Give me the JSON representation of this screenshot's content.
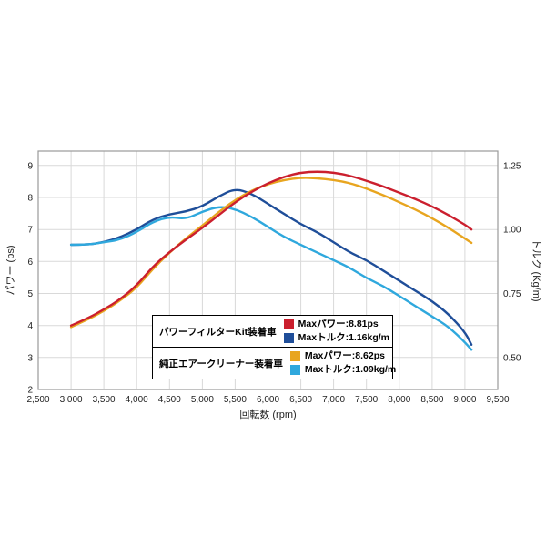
{
  "chart_data": {
    "type": "line",
    "x_axis": {
      "label": "回転数 (rpm)",
      "min": 2500,
      "max": 9500,
      "tick_step": 500,
      "tick_labels": [
        "2,500",
        "3,000",
        "3,500",
        "4,000",
        "4,500",
        "5,000",
        "5,500",
        "6,000",
        "6,500",
        "7,000",
        "7,500",
        "8,000",
        "8,500",
        "9,000",
        "9,500"
      ]
    },
    "left_axis": {
      "label": "パワー (ps)",
      "min": 2,
      "max": 9.45,
      "ticks": [
        2,
        3,
        4,
        5,
        6,
        7,
        8,
        9
      ]
    },
    "right_axis": {
      "label": "トルク (Kg/m)",
      "min": 0.375,
      "max": 1.30625,
      "ticks": [
        0.5,
        0.75,
        1.0,
        1.25
      ],
      "tick_labels": [
        "0.50",
        "0.75",
        "1.00",
        "1.25"
      ]
    },
    "grid_on": true,
    "grid_color": "#d9d9d9",
    "frame_color": "#9a9a9a",
    "legend_position": "inside-bottom-center",
    "series": [
      {
        "name": "パワーフィルターKit装着車 トルク",
        "axis": "right",
        "color": "#1f4e99",
        "max": "1.16kg/m",
        "points": [
          [
            3000,
            0.94
          ],
          [
            3250,
            0.94
          ],
          [
            3500,
            0.95
          ],
          [
            3750,
            0.97
          ],
          [
            4000,
            1.0
          ],
          [
            4250,
            1.04
          ],
          [
            4500,
            1.06
          ],
          [
            4750,
            1.07
          ],
          [
            5000,
            1.09
          ],
          [
            5250,
            1.13
          ],
          [
            5500,
            1.16
          ],
          [
            5750,
            1.14
          ],
          [
            6000,
            1.1
          ],
          [
            6250,
            1.06
          ],
          [
            6500,
            1.02
          ],
          [
            6750,
            0.99
          ],
          [
            7000,
            0.95
          ],
          [
            7250,
            0.91
          ],
          [
            7500,
            0.88
          ],
          [
            7750,
            0.84
          ],
          [
            8000,
            0.8
          ],
          [
            8250,
            0.76
          ],
          [
            8500,
            0.72
          ],
          [
            8750,
            0.67
          ],
          [
            9000,
            0.6
          ],
          [
            9100,
            0.55
          ]
        ]
      },
      {
        "name": "純正エアークリーナー装着車 トルク",
        "axis": "right",
        "color": "#2fa8dd",
        "max": "1.09kg/m",
        "points": [
          [
            3000,
            0.94
          ],
          [
            3250,
            0.94
          ],
          [
            3500,
            0.95
          ],
          [
            3750,
            0.96
          ],
          [
            4000,
            0.99
          ],
          [
            4250,
            1.03
          ],
          [
            4500,
            1.05
          ],
          [
            4750,
            1.04
          ],
          [
            5000,
            1.07
          ],
          [
            5250,
            1.09
          ],
          [
            5500,
            1.08
          ],
          [
            5750,
            1.05
          ],
          [
            6000,
            1.01
          ],
          [
            6250,
            0.97
          ],
          [
            6500,
            0.94
          ],
          [
            6750,
            0.91
          ],
          [
            7000,
            0.88
          ],
          [
            7250,
            0.85
          ],
          [
            7500,
            0.81
          ],
          [
            7750,
            0.78
          ],
          [
            8000,
            0.74
          ],
          [
            8250,
            0.7
          ],
          [
            8500,
            0.66
          ],
          [
            8750,
            0.62
          ],
          [
            9000,
            0.56
          ],
          [
            9100,
            0.53
          ]
        ]
      },
      {
        "name": "純正エアークリーナー装着車 パワー",
        "axis": "left",
        "color": "#e8a51f",
        "max": "8.62ps",
        "points": [
          [
            3000,
            3.95
          ],
          [
            3250,
            4.18
          ],
          [
            3500,
            4.45
          ],
          [
            3750,
            4.78
          ],
          [
            4000,
            5.18
          ],
          [
            4250,
            5.78
          ],
          [
            4500,
            6.28
          ],
          [
            4750,
            6.72
          ],
          [
            5000,
            7.12
          ],
          [
            5250,
            7.55
          ],
          [
            5500,
            7.92
          ],
          [
            5750,
            8.22
          ],
          [
            6000,
            8.42
          ],
          [
            6250,
            8.55
          ],
          [
            6500,
            8.62
          ],
          [
            6750,
            8.6
          ],
          [
            7000,
            8.55
          ],
          [
            7250,
            8.45
          ],
          [
            7500,
            8.28
          ],
          [
            7750,
            8.08
          ],
          [
            8000,
            7.85
          ],
          [
            8250,
            7.62
          ],
          [
            8500,
            7.35
          ],
          [
            8750,
            7.05
          ],
          [
            9000,
            6.72
          ],
          [
            9100,
            6.58
          ]
        ]
      },
      {
        "name": "パワーフィルターKit装着車 パワー",
        "axis": "left",
        "color": "#cb1f2e",
        "max": "8.81ps",
        "points": [
          [
            3000,
            4.0
          ],
          [
            3250,
            4.22
          ],
          [
            3500,
            4.5
          ],
          [
            3750,
            4.82
          ],
          [
            4000,
            5.25
          ],
          [
            4250,
            5.85
          ],
          [
            4500,
            6.3
          ],
          [
            4750,
            6.68
          ],
          [
            5000,
            7.05
          ],
          [
            5250,
            7.45
          ],
          [
            5500,
            7.85
          ],
          [
            5750,
            8.18
          ],
          [
            6000,
            8.45
          ],
          [
            6250,
            8.65
          ],
          [
            6500,
            8.78
          ],
          [
            6750,
            8.81
          ],
          [
            7000,
            8.78
          ],
          [
            7250,
            8.68
          ],
          [
            7500,
            8.52
          ],
          [
            7750,
            8.35
          ],
          [
            8000,
            8.15
          ],
          [
            8250,
            7.95
          ],
          [
            8500,
            7.72
          ],
          [
            8750,
            7.45
          ],
          [
            9000,
            7.15
          ],
          [
            9100,
            7.0
          ]
        ]
      }
    ]
  },
  "legend": {
    "rows": [
      {
        "title": "パワーフィルターKit装着車",
        "entries": [
          {
            "color": "#cb1f2e",
            "text": "Maxパワー:8.81ps"
          },
          {
            "color": "#1f4e99",
            "text": "Maxトルク:1.16kg/m"
          }
        ]
      },
      {
        "title": "純正エアークリーナー装着車",
        "entries": [
          {
            "color": "#e8a51f",
            "text": "Maxパワー:8.62ps"
          },
          {
            "color": "#2fa8dd",
            "text": "Maxトルク:1.09kg/m"
          }
        ]
      }
    ]
  }
}
